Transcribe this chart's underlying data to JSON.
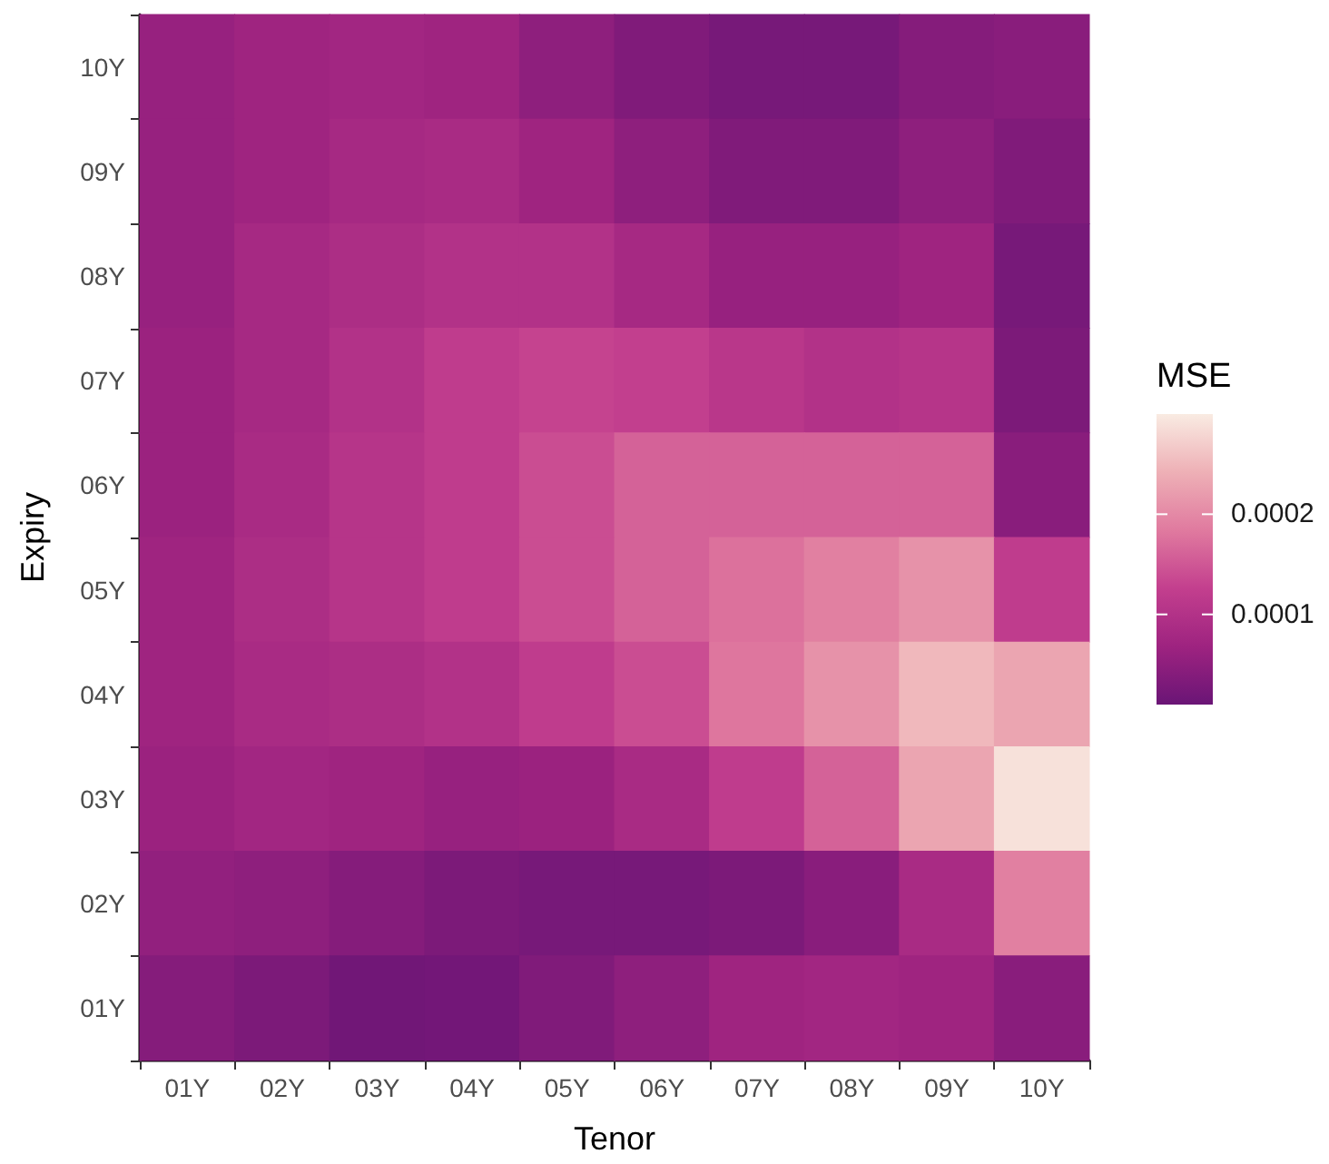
{
  "chart_data": {
    "type": "heatmap",
    "xlabel": "Tenor",
    "ylabel": "Expiry",
    "clabel": "MSE",
    "categories": [
      "01Y",
      "02Y",
      "03Y",
      "04Y",
      "05Y",
      "06Y",
      "07Y",
      "08Y",
      "09Y",
      "10Y"
    ],
    "y_categories": [
      "10Y",
      "09Y",
      "08Y",
      "07Y",
      "06Y",
      "05Y",
      "04Y",
      "03Y",
      "02Y",
      "01Y"
    ],
    "cells": [
      [
        6e-05,
        7e-05,
        7.5e-05,
        7e-05,
        5e-05,
        3.5e-05,
        2.5e-05,
        2.5e-05,
        4e-05,
        4.5e-05
      ],
      [
        6e-05,
        7e-05,
        8e-05,
        8.5e-05,
        7e-05,
        5e-05,
        3.5e-05,
        3.5e-05,
        5e-05,
        3.5e-05
      ],
      [
        6e-05,
        8e-05,
        9e-05,
        0.0001,
        0.0001,
        8e-05,
        6e-05,
        6e-05,
        7e-05,
        2.5e-05
      ],
      [
        6.5e-05,
        8e-05,
        0.0001,
        0.00012,
        0.00013,
        0.000125,
        0.00011,
        0.0001,
        0.000105,
        3e-05
      ],
      [
        6.5e-05,
        8.5e-05,
        0.000105,
        0.00012,
        0.00014,
        0.00016,
        0.00016,
        0.00016,
        0.00016,
        4.5e-05
      ],
      [
        7e-05,
        9e-05,
        0.000105,
        0.00012,
        0.00014,
        0.00016,
        0.000175,
        0.00019,
        0.00021,
        0.00012
      ],
      [
        7e-05,
        8.5e-05,
        9e-05,
        0.0001,
        0.00012,
        0.00014,
        0.00018,
        0.00021,
        0.00025,
        0.00023
      ],
      [
        6.5e-05,
        7.5e-05,
        7e-05,
        6e-05,
        6.5e-05,
        8.5e-05,
        0.00012,
        0.00016,
        0.00023,
        0.00029
      ],
      [
        5.5e-05,
        5e-05,
        4e-05,
        3e-05,
        2.5e-05,
        2.5e-05,
        3e-05,
        4.5e-05,
        8.5e-05,
        0.00019
      ],
      [
        4e-05,
        3e-05,
        1.8e-05,
        2e-05,
        3.5e-05,
        5e-05,
        7e-05,
        7.5e-05,
        7e-05,
        4.5e-05
      ]
    ],
    "clim": [
      1e-05,
      0.0003
    ],
    "cticks": [
      0.0001,
      0.0002
    ]
  }
}
